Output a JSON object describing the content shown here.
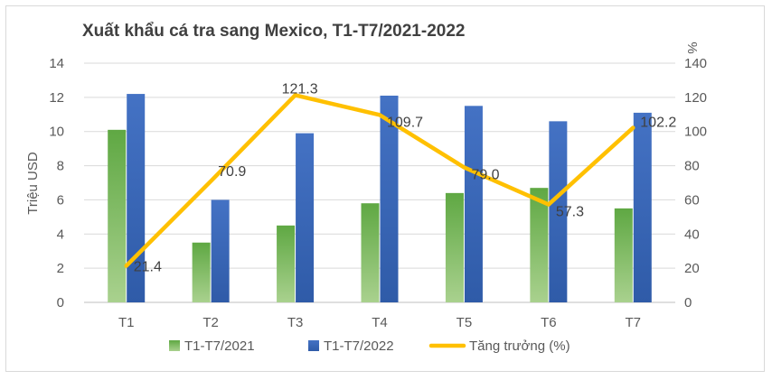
{
  "chart_data": {
    "type": "bar",
    "title": "Xuất khẩu cá tra sang Mexico, T1-T7/2021-2022",
    "ylabel": "Triệu USD",
    "y2label": "%",
    "categories": [
      "T1",
      "T2",
      "T3",
      "T4",
      "T5",
      "T6",
      "T7"
    ],
    "ylim": [
      0,
      14
    ],
    "y_ticks": [
      "0",
      "2",
      "4",
      "6",
      "8",
      "10",
      "12",
      "14"
    ],
    "y2lim": [
      0,
      140
    ],
    "y2_ticks": [
      "0",
      "20",
      "40",
      "60",
      "80",
      "100",
      "120",
      "140"
    ],
    "series": [
      {
        "name": "T1-T7/2021",
        "type": "bar",
        "axis": "left",
        "color": "#70ad47",
        "values": [
          10.1,
          3.5,
          4.5,
          5.8,
          6.4,
          6.7,
          5.5
        ]
      },
      {
        "name": "T1-T7/2022",
        "type": "bar",
        "axis": "left",
        "color": "#4472c4",
        "values": [
          12.2,
          6.0,
          9.9,
          12.1,
          11.5,
          10.6,
          11.1
        ]
      },
      {
        "name": "Tăng trưởng (%)",
        "type": "line",
        "axis": "right",
        "color": "#ffc000",
        "values": [
          21.4,
          70.9,
          121.3,
          109.7,
          79.0,
          57.3,
          102.2
        ],
        "labels": [
          "21.4",
          "70.9",
          "121.3",
          "109.7",
          "79.0",
          "57.3",
          "102.2"
        ]
      }
    ],
    "grid": true,
    "legend": "bottom"
  }
}
